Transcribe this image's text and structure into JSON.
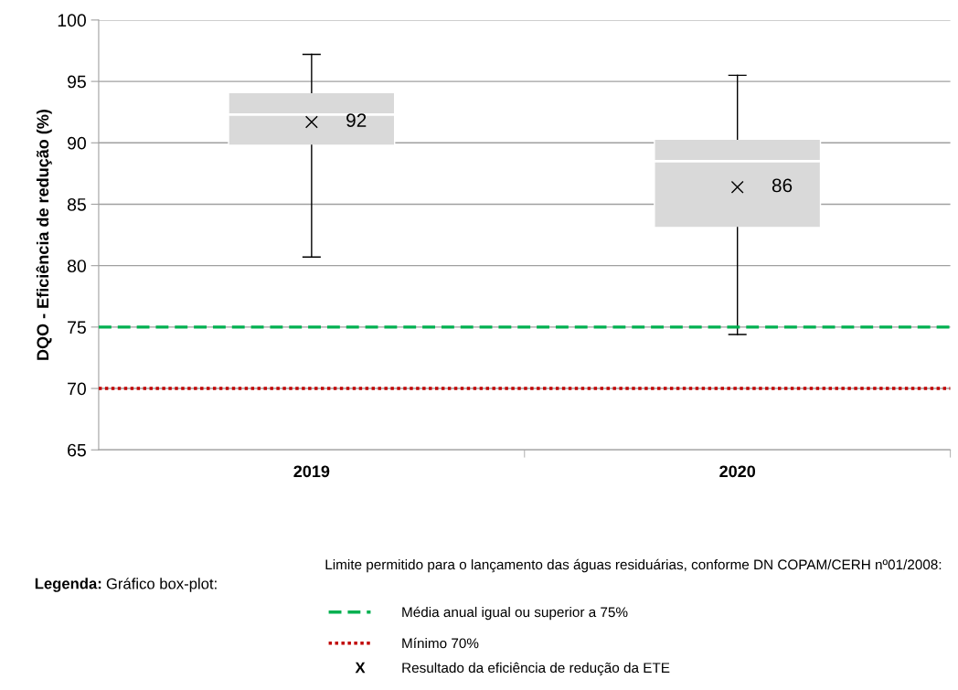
{
  "chart_data": {
    "type": "box",
    "ylabel": "DQO - Eficiência de redução (%)",
    "categories": [
      "2019",
      "2020"
    ],
    "series": [
      {
        "color": "#d9d9d9",
        "marker": "cross",
        "value_labels": [
          "92",
          "86"
        ],
        "boxes": [
          {
            "low": 80.7,
            "q1": 89.8,
            "median": 92.3,
            "q3": 94.1,
            "high": 97.2,
            "mean": 91.7
          },
          {
            "low": 74.4,
            "q1": 83.1,
            "median": 88.5,
            "q3": 90.3,
            "high": 95.5,
            "mean": 86.4
          }
        ]
      }
    ],
    "ylim": [
      65,
      100
    ],
    "yticks": [
      65,
      70,
      75,
      80,
      85,
      90,
      95,
      100
    ],
    "grid": "y",
    "legend": "bottom",
    "ref_lines": [
      {
        "axis": "y",
        "value": 75,
        "label": "Média anual igual ou superior a 75%",
        "color": "#00b050",
        "line_style": "dashed"
      },
      {
        "axis": "y",
        "value": 70,
        "label": "Mínimo 70%",
        "color": "#c00000",
        "line_style": "dotted"
      }
    ],
    "annotations": [
      "Legenda:",
      "Gráfico box-plot:",
      "Limite permitido para o lançamento das águas residuárias, conforme DN COPAM/CERH nº01/2008:",
      "X",
      "Resultado da eficiência de redução da ETE"
    ]
  }
}
